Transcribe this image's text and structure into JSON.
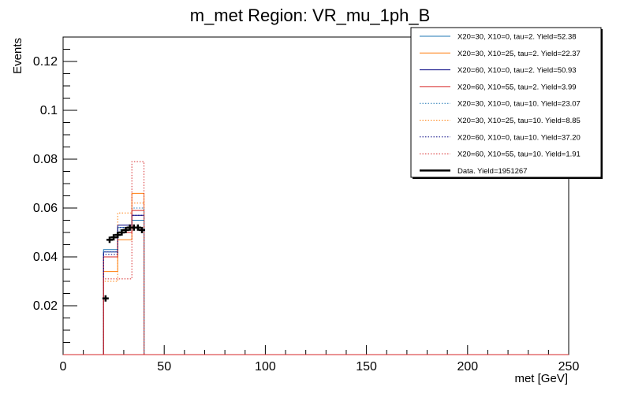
{
  "chart_data": {
    "type": "histogram",
    "title": "m_met Region: VR_mu_1ph_B",
    "xlabel": "met [GeV]",
    "ylabel": "Events",
    "xlim": [
      0,
      250
    ],
    "ylim": [
      0,
      0.13
    ],
    "x_ticks": [
      0,
      50,
      100,
      150,
      200,
      250
    ],
    "x_tick_labels": [
      "0",
      "50",
      "100",
      "150",
      "200",
      "250"
    ],
    "y_ticks": [
      0.02,
      0.04,
      0.06,
      0.08,
      0.1,
      0.12
    ],
    "y_tick_labels": [
      "0.02",
      "0.04",
      "0.06",
      "0.08",
      "0.1",
      "0.12"
    ],
    "grid": false,
    "legend_position": "top-right",
    "bin_edges": [
      20,
      27,
      34,
      40
    ],
    "series": [
      {
        "name": "X20=30, X10=0, tau=2. Yield=52.38",
        "color": "#1f77b4",
        "style": "solid",
        "values": [
          0.043,
          0.052,
          0.055
        ]
      },
      {
        "name": "X20=30, X10=25, tau=2. Yield=22.37",
        "color": "#ff7f0e",
        "style": "solid",
        "values": [
          0.034,
          0.047,
          0.066
        ]
      },
      {
        "name": "X20=60, X10=0, tau=2. Yield=50.93",
        "color": "#000080",
        "style": "solid",
        "values": [
          0.042,
          0.053,
          0.057
        ]
      },
      {
        "name": "X20=60, X10=55, tau=2. Yield=3.99",
        "color": "#d62728",
        "style": "solid",
        "values": [
          0.04,
          0.05,
          0.059
        ]
      },
      {
        "name": "X20=30, X10=0, tau=10. Yield=23.07",
        "color": "#1f77b4",
        "style": "dotted",
        "values": [
          0.042,
          0.051,
          0.06
        ]
      },
      {
        "name": "X20=30, X10=25, tau=10. Yield=8.85",
        "color": "#ff7f0e",
        "style": "dotted",
        "values": [
          0.03,
          0.058,
          0.062
        ]
      },
      {
        "name": "X20=60, X10=0, tau=10. Yield=37.20",
        "color": "#000080",
        "style": "dotted",
        "values": [
          0.041,
          0.052,
          0.057
        ]
      },
      {
        "name": "X20=60, X10=55, tau=10. Yield=1.91",
        "color": "#d62728",
        "style": "dotted",
        "values": [
          0.031,
          0.031,
          0.079
        ]
      }
    ],
    "data": {
      "name": "Data. Yield=1951267",
      "color": "#000000",
      "x": [
        20,
        22,
        24,
        26,
        28,
        30,
        32,
        34,
        36,
        38
      ],
      "y": [
        0.023,
        0.047,
        0.048,
        0.049,
        0.05,
        0.051,
        0.052,
        0.052,
        0.052,
        0.051
      ]
    }
  }
}
